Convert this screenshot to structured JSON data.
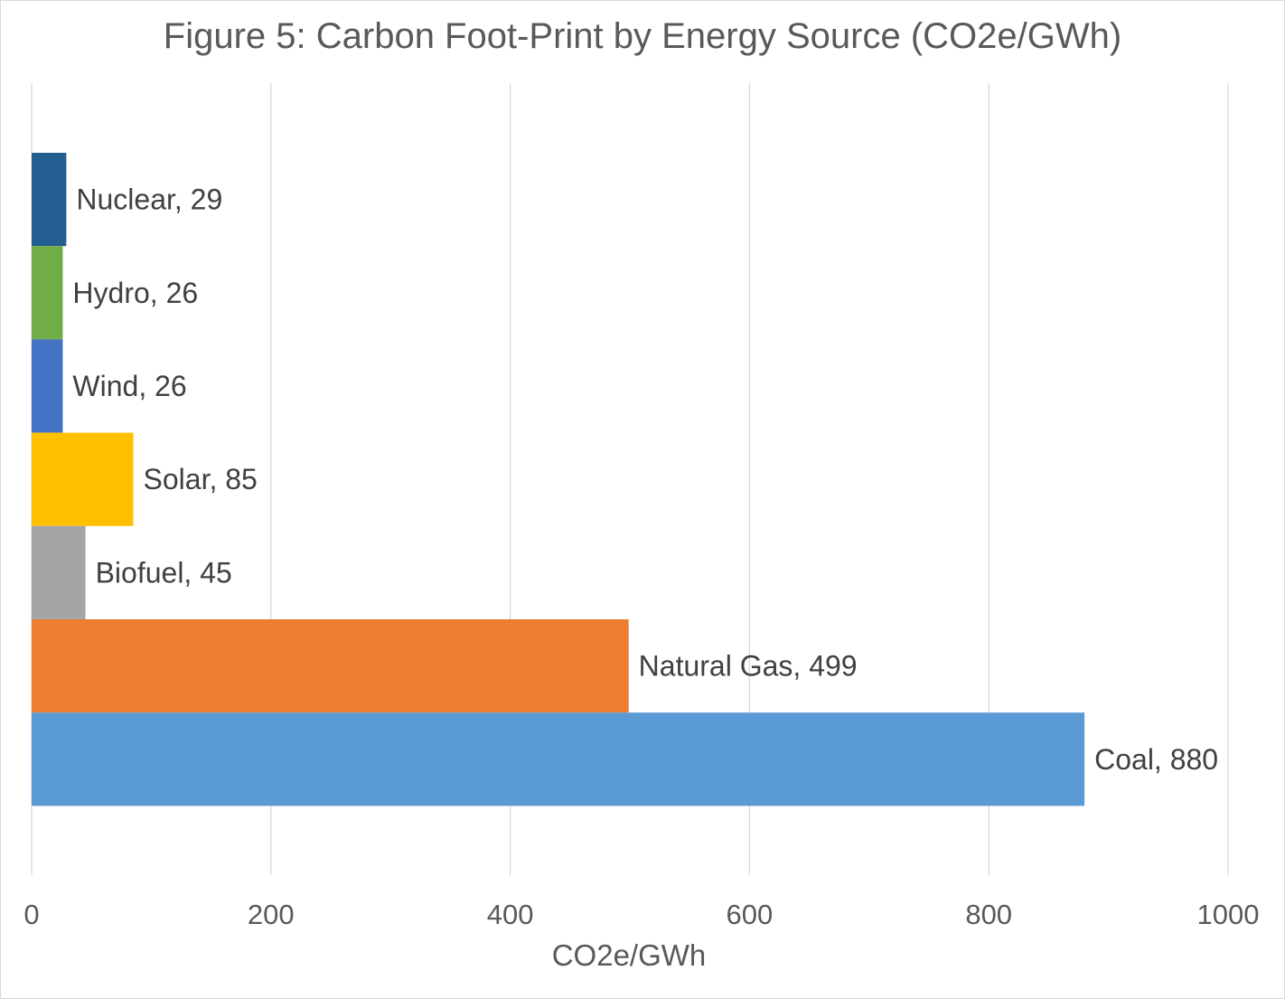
{
  "chart_data": {
    "type": "bar",
    "orientation": "horizontal",
    "title": "Figure 5: Carbon Foot-Print by Energy Source (CO2e/GWh)",
    "xlabel": "CO2e/GWh",
    "ylabel": "",
    "xlim": [
      0,
      1000
    ],
    "x_ticks": [
      0,
      200,
      400,
      600,
      800,
      1000
    ],
    "grid": true,
    "legend": "none",
    "categories": [
      "Nuclear",
      "Hydro",
      "Wind",
      "Solar",
      "Biofuel",
      "Natural Gas",
      "Coal"
    ],
    "values": [
      29,
      26,
      26,
      85,
      45,
      499,
      880
    ],
    "data_labels": [
      "Nuclear, 29",
      "Hydro, 26",
      "Wind, 26",
      "Solar, 85",
      "Biofuel, 45",
      "Natural Gas, 499",
      "Coal, 880"
    ],
    "colors": [
      "#255e91",
      "#70ad47",
      "#4472c4",
      "#ffc000",
      "#a5a5a5",
      "#ed7d31",
      "#5b9bd5"
    ]
  }
}
